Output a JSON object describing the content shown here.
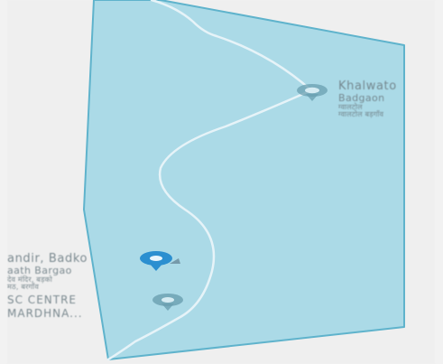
{
  "map": {
    "colors": {
      "land": "#efefef",
      "boundary_fill": "#a6d8e6",
      "boundary_stroke": "#5fb3cc",
      "road": "#e6f3f8",
      "marker_primary": "#2b8fd0",
      "marker_muted": "#6a9fb0",
      "label_text": "#6f7f86"
    },
    "places": [
      {
        "id": "khalwato",
        "icon": "map-pin-icon",
        "lines": [
          "Khalwato",
          "Badgaon",
          "ग्वालटोल",
          "ग्वालटोल बड़गाँव"
        ]
      },
      {
        "id": "mandir",
        "icon": "map-pin-selected-icon",
        "lines": [
          "andir, Badko",
          "aath Bargao",
          "देव मंदिर, बड़को",
          "मठ, बरगाँव"
        ]
      },
      {
        "id": "sc-centre",
        "icon": "map-pin-icon",
        "lines": [
          "SC CENTRE",
          "MARDHNA..."
        ]
      }
    ]
  }
}
